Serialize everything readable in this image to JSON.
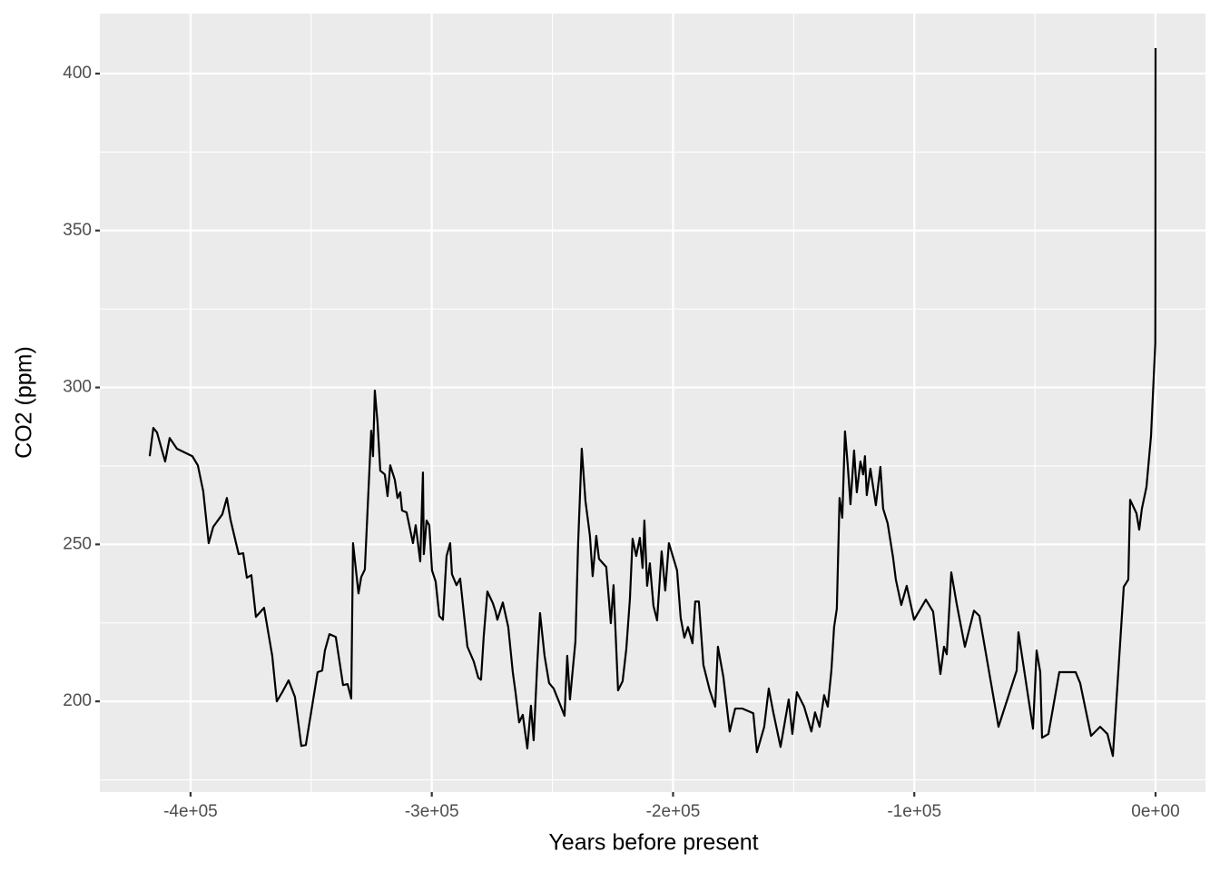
{
  "chart_data": {
    "type": "line",
    "x_label": "Years before present",
    "y_label": "CO2 (ppm)",
    "color": "#000000",
    "grid": true,
    "xlim": [
      -437600,
      20700
    ],
    "ylim": [
      171.1,
      419.1
    ],
    "xticks": [
      {
        "value": -400000,
        "label": "-4e+05"
      },
      {
        "value": -300000,
        "label": "-3e+05"
      },
      {
        "value": -200000,
        "label": "-2e+05"
      },
      {
        "value": -100000,
        "label": "-1e+05"
      },
      {
        "value": 0,
        "label": "0e+00"
      }
    ],
    "yticks": [
      200,
      250,
      300,
      350,
      400
    ],
    "minor_xticks": [
      -350000,
      -250000,
      -150000,
      -50000
    ],
    "minor_yticks": [
      175,
      225,
      275,
      325,
      375
    ],
    "x": [
      -416940,
      -415430,
      -413930,
      -410540,
      -408660,
      -405650,
      -399250,
      -396990,
      -394740,
      -392480,
      -390600,
      -386830,
      -384950,
      -383450,
      -380060,
      -378180,
      -376670,
      -374790,
      -372910,
      -369530,
      -366140,
      -364260,
      -362000,
      -359370,
      -356730,
      -354100,
      -352220,
      -347330,
      -345440,
      -344310,
      -342430,
      -339800,
      -336790,
      -334910,
      -333400,
      -332650,
      -330390,
      -329260,
      -327760,
      -325120,
      -324370,
      -323620,
      -322490,
      -321360,
      -319480,
      -318350,
      -317220,
      -315340,
      -314210,
      -313080,
      -312330,
      -310450,
      -307810,
      -306680,
      -304800,
      -303670,
      -303300,
      -302170,
      -301040,
      -299910,
      -298410,
      -296900,
      -295400,
      -293890,
      -292390,
      -291640,
      -289750,
      -288250,
      -285240,
      -282610,
      -280730,
      -279600,
      -278470,
      -276960,
      -274710,
      -273580,
      -272830,
      -270570,
      -268310,
      -266430,
      -265300,
      -263800,
      -262290,
      -260410,
      -258910,
      -257780,
      -256270,
      -255140,
      -253260,
      -251380,
      -249500,
      -246870,
      -244990,
      -243860,
      -242730,
      -240470,
      -239340,
      -237840,
      -236330,
      -234450,
      -233320,
      -231820,
      -230690,
      -227680,
      -225800,
      -224670,
      -222790,
      -220910,
      -219400,
      -217900,
      -216770,
      -215260,
      -213760,
      -212630,
      -211880,
      -210750,
      -209620,
      -208120,
      -206610,
      -204730,
      -203230,
      -201720,
      -198330,
      -196830,
      -195320,
      -193820,
      -191940,
      -190810,
      -189300,
      -187420,
      -184790,
      -182530,
      -181400,
      -179150,
      -176510,
      -174250,
      -171240,
      -166730,
      -165220,
      -162210,
      -160330,
      -158450,
      -155440,
      -152050,
      -150550,
      -148670,
      -145660,
      -142650,
      -141140,
      -139260,
      -137380,
      -135870,
      -134370,
      -133240,
      -132110,
      -130980,
      -129850,
      -128720,
      -127590,
      -126460,
      -124960,
      -123830,
      -122330,
      -121200,
      -120450,
      -119700,
      -118190,
      -115930,
      -114050,
      -112920,
      -111040,
      -108780,
      -107650,
      -105400,
      -103140,
      -100100,
      -95200,
      -92200,
      -89180,
      -87680,
      -86550,
      -84670,
      -82410,
      -79020,
      -75260,
      -73000,
      -65850,
      -65100,
      -57570,
      -56820,
      -50800,
      -49300,
      -47790,
      -47040,
      -44400,
      -39890,
      -33120,
      -31240,
      -26720,
      -22960,
      -19940,
      -17690,
      -13170,
      -11290,
      -10540,
      -7900,
      -6770,
      -5650,
      -3760,
      -1880,
      -100,
      -50,
      0
    ],
    "values": [
      278.1,
      287.1,
      285.7,
      276.4,
      283.9,
      280.5,
      278.1,
      275.2,
      266.9,
      250.4,
      255.6,
      259.6,
      264.8,
      257.9,
      246.9,
      247.2,
      239.4,
      240.2,
      226.9,
      229.8,
      214.5,
      200.0,
      202.9,
      206.7,
      201.4,
      185.8,
      186.1,
      209.3,
      209.8,
      216.2,
      221.4,
      220.5,
      205.2,
      205.5,
      200.9,
      250.4,
      234.4,
      239.6,
      242.0,
      286.2,
      278.1,
      299.0,
      288.8,
      273.5,
      272.3,
      265.4,
      275.2,
      270.6,
      264.8,
      266.6,
      260.8,
      260.2,
      250.4,
      256.1,
      244.6,
      272.9,
      246.9,
      257.6,
      256.1,
      241.7,
      238.2,
      227.2,
      226.0,
      246.3,
      250.4,
      240.5,
      237.0,
      239.1,
      217.4,
      212.7,
      207.5,
      206.9,
      220.8,
      235.0,
      231.3,
      228.6,
      226.0,
      231.5,
      223.7,
      209.3,
      202.9,
      193.3,
      195.7,
      185.0,
      198.6,
      187.6,
      212.2,
      228.1,
      214.5,
      205.8,
      204.1,
      199.1,
      195.4,
      214.5,
      200.6,
      219.1,
      250.4,
      280.5,
      264.0,
      252.7,
      239.9,
      252.7,
      245.4,
      242.8,
      224.9,
      237.0,
      203.5,
      206.4,
      216.5,
      232.4,
      251.8,
      246.3,
      252.1,
      242.5,
      257.6,
      236.8,
      244.0,
      230.4,
      225.8,
      247.8,
      235.3,
      250.4,
      241.7,
      226.6,
      220.3,
      223.7,
      218.5,
      231.8,
      231.8,
      211.6,
      203.5,
      198.3,
      217.4,
      207.8,
      190.4,
      197.7,
      197.7,
      196.2,
      183.8,
      191.9,
      204.1,
      196.5,
      185.5,
      200.6,
      189.6,
      202.9,
      198.3,
      190.4,
      196.5,
      191.9,
      202.0,
      198.3,
      209.8,
      223.7,
      229.5,
      264.8,
      258.5,
      286.0,
      275.2,
      262.8,
      279.9,
      266.6,
      276.4,
      272.3,
      278.1,
      265.7,
      274.1,
      262.5,
      274.7,
      261.4,
      256.7,
      245.7,
      238.8,
      230.7,
      236.8,
      226.0,
      232.4,
      228.6,
      208.7,
      217.4,
      215.0,
      241.1,
      231.0,
      217.4,
      228.9,
      227.2,
      195.4,
      191.9,
      209.8,
      222.0,
      191.3,
      216.2,
      209.3,
      188.4,
      189.6,
      209.3,
      209.3,
      205.8,
      189.0,
      191.9,
      189.6,
      182.6,
      236.5,
      238.8,
      264.2,
      259.9,
      254.7,
      261.4,
      268.3,
      284.5,
      314.0,
      330.0,
      408.1
    ]
  }
}
